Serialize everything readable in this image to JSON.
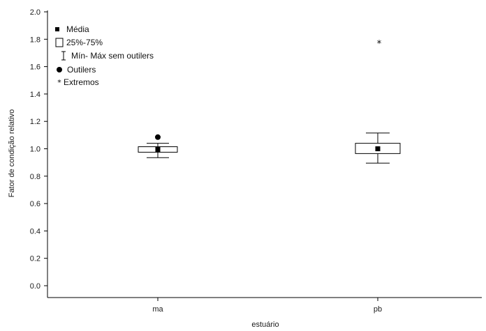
{
  "chart_data": {
    "type": "box",
    "xlabel": "estuário",
    "ylabel": "Fator de condição relativo",
    "ylim": [
      0.0,
      2.0
    ],
    "yticks": [
      "0.0",
      "0.2",
      "0.4",
      "0.6",
      "0.8",
      "1.0",
      "1.2",
      "1.4",
      "1.6",
      "1.8",
      "2.0"
    ],
    "categories": [
      "ma",
      "pb"
    ],
    "boxes": [
      {
        "category": "ma",
        "mean": 0.995,
        "q1": 0.975,
        "q3": 1.015,
        "min": 0.935,
        "max": 1.04,
        "outliers": [
          1.085
        ],
        "extremes": []
      },
      {
        "category": "pb",
        "mean": 1.0,
        "q1": 0.965,
        "q3": 1.04,
        "min": 0.895,
        "max": 1.115,
        "outliers": [],
        "extremes": [
          1.775
        ]
      }
    ],
    "legend": {
      "position": "top-left",
      "items": [
        {
          "symbol": "mean",
          "label": "Média"
        },
        {
          "symbol": "box",
          "label": "25%-75%"
        },
        {
          "symbol": "whisker",
          "label": "Mín- Máx sem outilers"
        },
        {
          "symbol": "outlier",
          "label": "Outilers"
        },
        {
          "symbol": "extreme",
          "label": "Extremos"
        }
      ]
    }
  }
}
